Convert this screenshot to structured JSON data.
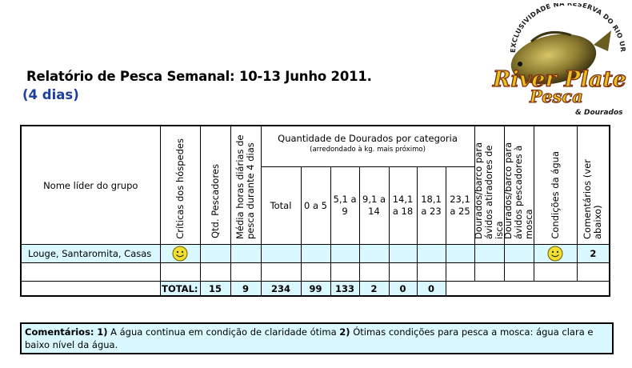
{
  "report": {
    "title": "Relatório de Pesca Semanal: 10-13 Junho 2011.",
    "subtitle": "(4 dias)"
  },
  "logo": {
    "arc_text": "EXCLUSIVIDADE NA RESERVA DO RIO URUGUAI",
    "brand_line1": "River Plate",
    "brand_line2": "Pesca",
    "brand_tag": "& Dourados",
    "brand_color": "#e8c21a",
    "fish_color": "#8a7a2e"
  },
  "table": {
    "headers": {
      "leader": "Nome líder do grupo",
      "critics": "Críticas dos hóspedes",
      "anglers": "Qtd. Pescadores",
      "hours": "Média horas diárias de pesca durante 4 dias",
      "qty_title": "Quantidade de Dourados por categoria",
      "qty_note": "(arredondado à kg. mais próximo)",
      "total": "Total",
      "cat1": "0 a 5",
      "cat2": "5,1 a 9",
      "cat3": "9,1 a 14",
      "cat4": "14,1 a 18",
      "cat5": "18,1 a 23",
      "cat6": "23,1 a 25",
      "boat_bait": "Dourados/barco para ávidos atiradores de isca",
      "boat_fly": "Dourados/barco para ávidos pescadores à mosca",
      "water": "Condições da água",
      "comments": "Comentários (ver abaixo)"
    },
    "rows": [
      {
        "leader": "Louge, Santaromita, Casas",
        "critics_icon": "smiley-icon",
        "water_icon": "smiley-icon",
        "comments": "2"
      }
    ],
    "totals": {
      "label": "TOTAL:",
      "anglers": "15",
      "hours": "9",
      "total": "234",
      "cat1": "99",
      "cat2": "133",
      "cat3": "2",
      "cat4": "0",
      "cat5": "0"
    }
  },
  "comments": {
    "label": "Comentários:",
    "n1": "1)",
    "t1": " A água continua em condição de claridade ótima ",
    "n2": "2)",
    "t2": " Ótimas condições para pesca a mosca: água clara e baixo nível da água."
  },
  "colors": {
    "row_fill": "#d9f8ff",
    "subtitle": "#1f3f9e",
    "smiley": "#f2e030"
  }
}
